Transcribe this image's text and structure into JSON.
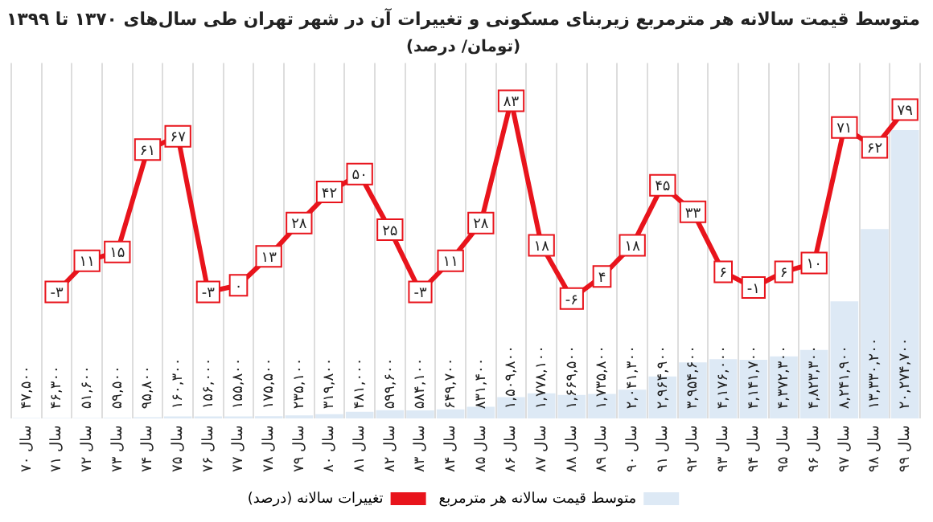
{
  "chart_data": {
    "type": "bar",
    "title": "متوسط قیمت سالانه هر مترمربع زیربنای مسکونی و تغییرات آن در شهر تهران طی سال‌های ۱۳۷۰ تا ۱۳۹۹",
    "subtitle": "(تومان/ درصد)",
    "categories": [
      "سال ۷۰",
      "سال ۷۱",
      "سال ۷۲",
      "سال ۷۳",
      "سال ۷۴",
      "سال ۷۵",
      "سال ۷۶",
      "سال ۷۷",
      "سال ۷۸",
      "سال ۷۹",
      "سال ۸۰",
      "سال ۸۱",
      "سال ۸۲",
      "سال ۸۳",
      "سال ۸۴",
      "سال ۸۵",
      "سال ۸۶",
      "سال ۸۷",
      "سال ۸۸",
      "سال ۸۹",
      "سال ۹۰",
      "سال ۹۱",
      "سال ۹۲",
      "سال ۹۳",
      "سال ۹۴",
      "سال ۹۵",
      "سال ۹۶",
      "سال ۹۷",
      "سال ۹۸",
      "سال ۹۹"
    ],
    "series": [
      {
        "name": "متوسط قیمت سالانه هر مترمربع",
        "color": "#dde9f5",
        "values": [
          47500,
          46300,
          51600,
          59500,
          95800,
          160300,
          156000,
          155800,
          175500,
          235100,
          319800,
          481000,
          599600,
          584100,
          649700,
          831400,
          1509800,
          1778100,
          1669500,
          1735800,
          2041300,
          2964900,
          3954600,
          4176000,
          4141700,
          4372300,
          4823300,
          8241900,
          13330200,
          20274700
        ],
        "value_labels": [
          "۴۷,۵۰۰",
          "۴۶,۳۰۰",
          "۵۱,۶۰۰",
          "۵۹,۵۰۰",
          "۹۵,۸۰۰",
          "۱۶۰,۳۰۰",
          "۱۵۶,۰۰۰",
          "۱۵۵,۸۰۰",
          "۱۷۵,۵۰۰",
          "۲۳۵,۱۰۰",
          "۳۱۹,۸۰۰",
          "۴۸۱,۰۰۰",
          "۵۹۹,۶۰۰",
          "۵۸۴,۱۰۰",
          "۶۴۹,۷۰۰",
          "۸۳۱,۴۰۰",
          "۱,۵۰۹,۸۰۰",
          "۱,۷۷۸,۱۰۰",
          "۱,۶۶۹,۵۰۰",
          "۱,۷۳۵,۸۰۰",
          "۲,۰۴۱,۳۰۰",
          "۲,۹۶۴,۹۰۰",
          "۳,۹۵۴,۶۰۰",
          "۴,۱۷۶,۰۰۰",
          "۴,۱۴۱,۷۰۰",
          "۴,۳۷۲,۳۰۰",
          "۴,۸۲۳,۳۰۰",
          "۸,۲۴۱,۹۰۰",
          "۱۳,۳۳۰,۲۰۰",
          "۲۰,۲۷۴,۷۰۰"
        ]
      },
      {
        "name": "تغییرات سالانه (درصد)",
        "type": "line",
        "axis": "y2",
        "color": "#e8141c",
        "values": [
          null,
          -3,
          11,
          15,
          61,
          67,
          -3,
          0,
          13,
          28,
          42,
          50,
          25,
          -3,
          11,
          28,
          83,
          18,
          -6,
          4,
          18,
          45,
          33,
          6,
          -1,
          6,
          10,
          71,
          62,
          79
        ],
        "value_labels": [
          null,
          "-۳",
          "۱۱",
          "۱۵",
          "۶۱",
          "۶۷",
          "-۳",
          "۰",
          "۱۳",
          "۲۸",
          "۴۲",
          "۵۰",
          "۲۵",
          "-۳",
          "۱۱",
          "۲۸",
          "۸۳",
          "۱۸",
          "-۶",
          "۴",
          "۱۸",
          "۴۵",
          "۳۳",
          "۶",
          "-۱",
          "۶",
          "۱۰",
          "۷۱",
          "۶۲",
          "۷۹"
        ]
      }
    ],
    "grid": "x",
    "legend": "bottom",
    "marker": "square",
    "tick_labels": "x"
  }
}
